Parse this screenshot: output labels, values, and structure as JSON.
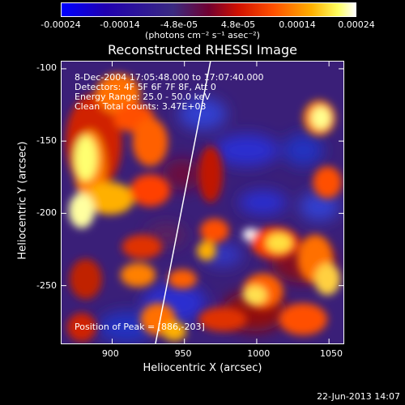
{
  "colorbar": {
    "ticks": [
      "-0.00024",
      "-0.00014",
      "-4.8e-05",
      "4.8e-05",
      "0.00014",
      "0.00024"
    ],
    "unit_text": "(photons cm⁻² s⁻¹ asec⁻²)",
    "colors": [
      "#0000ff",
      "#1a00a0",
      "#4a2a9a",
      "#b01010",
      "#ff3000",
      "#ff9a00",
      "#ffff60",
      "#ffffff"
    ]
  },
  "chart_data": {
    "type": "heatmap",
    "title": "Reconstructed RHESSI Image",
    "xlabel": "Heliocentric X (arcsec)",
    "ylabel": "Heliocentric Y (arcsec)",
    "xlim": [
      865,
      1060
    ],
    "ylim": [
      -290,
      -95
    ],
    "xticks": [
      "900",
      "950",
      "1000",
      "1050"
    ],
    "yticks": [
      "-100",
      "-150",
      "-200",
      "-250"
    ],
    "annotations": [
      "8-Dec-2004 17:05:48.000 to 17:07:40.000",
      "Detectors: 4F 5F 6F 7F 8F, Att 0",
      "Energy Range: 25.0 - 50.0 keV",
      "Clean    Total counts: 3.47E+03"
    ],
    "peak_text": "Position of Peak = [886,-203]",
    "peak_position": [
      886,
      -203
    ],
    "limb_x_at_ymin": 930,
    "limb_x_at_ymax": 968
  },
  "footer": {
    "date": "22-Jun-2013 14:07"
  }
}
